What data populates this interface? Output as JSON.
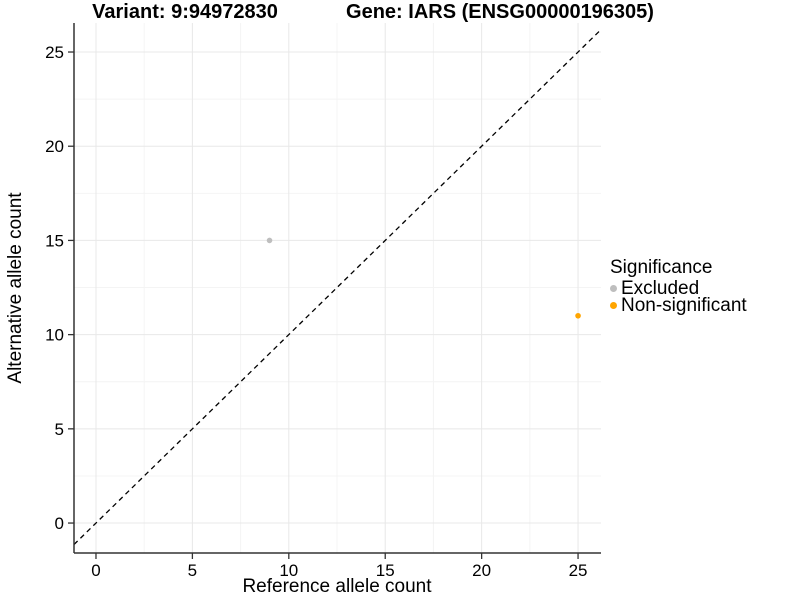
{
  "titles": {
    "variant": "Variant: 9:94972830",
    "gene": "Gene: IARS (ENSG00000196305)"
  },
  "chart_data": {
    "type": "scatter",
    "xlabel": "Reference allele count",
    "ylabel": "Alternative allele count",
    "x_ticks": [
      0,
      5,
      10,
      15,
      20,
      25
    ],
    "y_ticks": [
      0,
      5,
      10,
      15,
      20,
      25
    ],
    "x_minor_ticks": [
      2.5,
      7.5,
      12.5,
      17.5,
      22.5
    ],
    "y_minor_ticks": [
      2.5,
      7.5,
      12.5,
      17.5,
      22.5
    ],
    "xlim": [
      -1.14,
      26.19
    ],
    "ylim": [
      -1.59,
      26.54
    ],
    "grid": true,
    "legend": {
      "title": "Significance",
      "position": "right"
    },
    "identity_line": {
      "slope": 1,
      "intercept": 0,
      "style": "dashed",
      "color": "#000000"
    },
    "series": [
      {
        "name": "Excluded",
        "color": "#BEBEBE",
        "points": [
          {
            "x": 9,
            "y": 15
          }
        ]
      },
      {
        "name": "Non-significant",
        "color": "#FFA500",
        "points": [
          {
            "x": 25,
            "y": 11
          }
        ]
      }
    ],
    "colors": {
      "axis_line": "#333333",
      "tick_mark": "#333333",
      "grid_major": "#E8E8E8",
      "grid_minor": "#F4F4F4",
      "background": "#FFFFFF"
    }
  }
}
